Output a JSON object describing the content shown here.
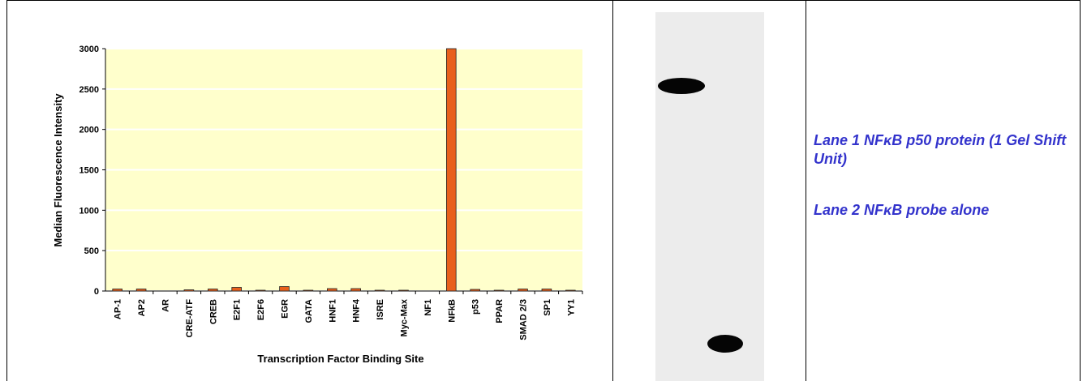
{
  "chart_data": {
    "type": "bar",
    "x_label": "Transcription Factor Binding Site",
    "y_label": "Median Fluorescence Intensity",
    "categories": [
      "AP-1",
      "AP2",
      "AR",
      "CRE-ATF",
      "CREB",
      "E2F1",
      "E2F6",
      "EGR",
      "GATA",
      "HNF1",
      "HNF4",
      "ISRE",
      "Myc-Max",
      "NF1",
      "NFkB",
      "p53",
      "PPAR",
      "SMAD 2/3",
      "SP1",
      "YY1"
    ],
    "values": [
      25,
      25,
      0,
      15,
      25,
      45,
      10,
      55,
      10,
      30,
      30,
      10,
      10,
      0,
      3000,
      20,
      10,
      25,
      25,
      10
    ],
    "color": "#e8601c",
    "ylim": [
      0,
      3000
    ],
    "yticks": [
      0,
      500,
      1000,
      1500,
      2000,
      2500,
      3000
    ],
    "grid": true
  },
  "annotations": [
    "Lane 1 NFκB p50 protein (1 Gel Shift Unit)",
    "Lane 2 NFκB probe alone"
  ]
}
